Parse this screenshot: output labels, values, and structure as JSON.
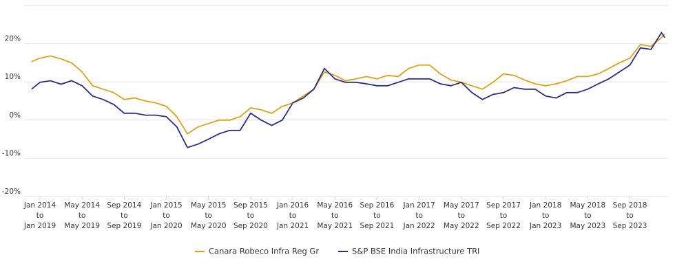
{
  "chart_data": {
    "type": "line",
    "x": [
      -0.8,
      0,
      1,
      2,
      3,
      4,
      5,
      6,
      7,
      8,
      9,
      10,
      11,
      12,
      13,
      14,
      15,
      16,
      17,
      18,
      19,
      20,
      21,
      22,
      23,
      24,
      25,
      26,
      27,
      28,
      29,
      30,
      31,
      32,
      33,
      34,
      35,
      36,
      37,
      38,
      39,
      40,
      41,
      42,
      43,
      44,
      45,
      46,
      47,
      48,
      49,
      50,
      51,
      52,
      53,
      54,
      55,
      56,
      57,
      58,
      59,
      59.3
    ],
    "series": [
      {
        "name": "Canara Robeco Infra Reg Gr",
        "color": "#d9a21b",
        "values": [
          15.3,
          16.2,
          16.8,
          16,
          15,
          12.6,
          9,
          8.1,
          7.2,
          5.4,
          5.8,
          5,
          4.5,
          3.6,
          0.9,
          -3.6,
          -1.8,
          -0.9,
          0,
          0,
          0.9,
          3.2,
          2.7,
          1.8,
          3.6,
          4.5,
          6.3,
          8.1,
          12.6,
          11.7,
          10.3,
          10.8,
          11.4,
          10.8,
          11.7,
          11.4,
          13.5,
          14.4,
          14.4,
          12.1,
          10.5,
          9.9,
          9,
          8.1,
          9.9,
          12.1,
          11.7,
          10.5,
          9.5,
          9,
          9.5,
          10.3,
          11.4,
          11.4,
          12.1,
          13.5,
          15,
          16.2,
          19.8,
          19.3,
          21.6,
          22.5
        ]
      },
      {
        "name": "S&P BSE India Infrastructure TRI",
        "color": "#2b2e83",
        "values": [
          8.1,
          9.9,
          10.3,
          9.4,
          10.3,
          9,
          6.3,
          5.4,
          4.1,
          1.8,
          1.8,
          1.3,
          1.3,
          0.9,
          -1.8,
          -7.2,
          -6.3,
          -5,
          -3.6,
          -2.7,
          -2.7,
          1.8,
          0,
          -1.4,
          0,
          4.5,
          5.8,
          8.1,
          13.5,
          10.8,
          9.9,
          9.9,
          9.5,
          9,
          9,
          9.9,
          10.8,
          10.8,
          10.8,
          9.5,
          9,
          9.9,
          7.2,
          5.4,
          6.7,
          7.2,
          8.5,
          8.1,
          8.1,
          6.3,
          5.8,
          7.2,
          7.2,
          8.1,
          9.5,
          10.8,
          12.6,
          14.4,
          18.9,
          18.5,
          22.9,
          21.6
        ]
      }
    ],
    "xlim": [
      -0.85,
      59.3
    ],
    "xticks": [
      {
        "value": 0,
        "label": [
          "Jan 2014",
          "to",
          "Jan 2019"
        ]
      },
      {
        "value": 4,
        "label": [
          "May 2014",
          "to",
          "May 2019"
        ]
      },
      {
        "value": 8,
        "label": [
          "Sep 2014",
          "to",
          "Sep 2019"
        ]
      },
      {
        "value": 12,
        "label": [
          "Jan 2015",
          "to",
          "Jan 2020"
        ]
      },
      {
        "value": 16,
        "label": [
          "May 2015",
          "to",
          "May 2020"
        ]
      },
      {
        "value": 20,
        "label": [
          "Sep 2015",
          "to",
          "Sep 2020"
        ]
      },
      {
        "value": 24,
        "label": [
          "Jan 2016",
          "to",
          "Jan 2021"
        ]
      },
      {
        "value": 28,
        "label": [
          "May 2016",
          "to",
          "May 2021"
        ]
      },
      {
        "value": 32,
        "label": [
          "Sep 2016",
          "to",
          "Sep 2021"
        ]
      },
      {
        "value": 36,
        "label": [
          "Jan 2017",
          "to",
          "Jan 2022"
        ]
      },
      {
        "value": 40,
        "label": [
          "May 2017",
          "to",
          "May 2022"
        ]
      },
      {
        "value": 44,
        "label": [
          "Sep 2017",
          "to",
          "Sep 2022"
        ]
      },
      {
        "value": 48,
        "label": [
          "Jan 2018",
          "to",
          "Jan 2023"
        ]
      },
      {
        "value": 52,
        "label": [
          "May 2018",
          "to",
          "May 2023"
        ]
      },
      {
        "value": 56,
        "label": [
          "Sep 2018",
          "to",
          "Sep 2023"
        ]
      }
    ],
    "ylim": [
      -20,
      30
    ],
    "yticks": [
      {
        "value": -20,
        "label": "-20%"
      },
      {
        "value": -10,
        "label": "-10%"
      },
      {
        "value": 0,
        "label": "0%"
      },
      {
        "value": 10,
        "label": "10%"
      },
      {
        "value": 20,
        "label": "20%"
      }
    ],
    "grid": true,
    "legend": "bottom"
  }
}
